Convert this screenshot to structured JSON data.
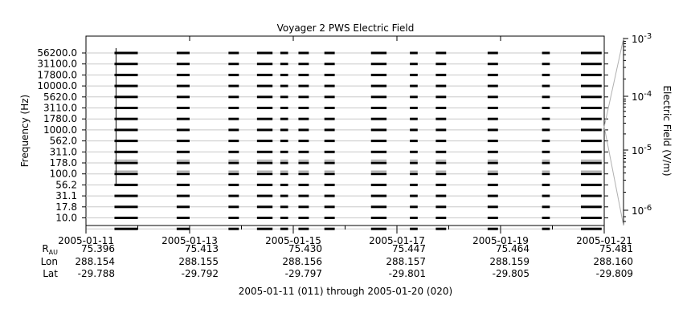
{
  "chart_data": {
    "type": "spectrogram",
    "title": "Voyager 2 PWS Electric Field",
    "ylabel": "Frequency (Hz)",
    "ytick_labels": [
      "56200.0",
      "31100.0",
      "17800.0",
      "10000.0",
      "5620.0",
      "3110.0",
      "1780.0",
      "1000.0",
      "562.0",
      "311.0",
      "178.0",
      "100.0",
      "56.2",
      "31.1",
      "17.8",
      "10.0"
    ],
    "x_tick_labels": [
      "2005-01-11",
      "2005-01-13",
      "2005-01-15",
      "2005-01-17",
      "2005-01-19",
      "2005-01-21"
    ],
    "x_range_days": [
      0,
      10
    ],
    "data_segments_days": [
      [
        0.55,
        1.0
      ],
      [
        1.75,
        2.0
      ],
      [
        2.75,
        2.95
      ],
      [
        3.3,
        3.6
      ],
      [
        3.75,
        3.9
      ],
      [
        4.1,
        4.3
      ],
      [
        4.6,
        4.8
      ],
      [
        5.5,
        5.8
      ],
      [
        6.25,
        6.4
      ],
      [
        6.75,
        6.95
      ],
      [
        7.75,
        7.95
      ],
      [
        8.8,
        8.95
      ],
      [
        9.55,
        9.95
      ]
    ],
    "spikes_days": [
      0.58
    ],
    "colorbar": {
      "label": "Electric Field (V/m)",
      "scale": "log",
      "tick_labels": [
        {
          "base": "10",
          "exp": "-3"
        },
        {
          "base": "10",
          "exp": "-4"
        },
        {
          "base": "10",
          "exp": "-5"
        },
        {
          "base": "10",
          "exp": "-6"
        }
      ]
    },
    "ephemeris": {
      "rows": [
        {
          "label": "R",
          "sub": "AU",
          "values": [
            "75.396",
            "75.413",
            "75.430",
            "75.447",
            "75.464",
            "75.481"
          ]
        },
        {
          "label": "Lon",
          "sub": "",
          "values": [
            "288.154",
            "288.155",
            "288.156",
            "288.157",
            "288.159",
            "288.160"
          ]
        },
        {
          "label": "Lat",
          "sub": "",
          "values": [
            "-29.788",
            "-29.792",
            "-29.797",
            "-29.801",
            "-29.805",
            "-29.809"
          ]
        }
      ]
    },
    "time_range_label": "2005-01-11 (011) through 2005-01-20 (020)"
  }
}
